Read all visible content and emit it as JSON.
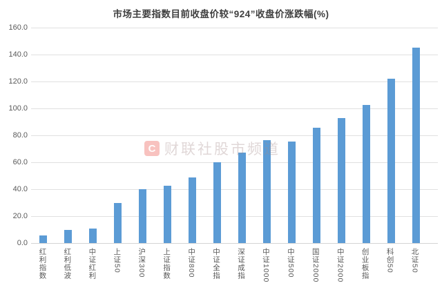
{
  "page": {
    "background": "#ffffff"
  },
  "watermark": {
    "logo_letter": "C",
    "text": "财联社股市频道",
    "logo_color": "#e8463c"
  },
  "chart_data": {
    "type": "bar",
    "title": "市场主要指数目前收盘价较“924”收盘价涨跌幅(%)",
    "categories": [
      "红利指数",
      "红利低波",
      "中证红利",
      "上证50",
      "沪深300",
      "上证指数",
      "中证800",
      "中证全指",
      "深证成指",
      "中证1000",
      "中证500",
      "国证2000",
      "中证2000",
      "创业板指",
      "科创50",
      "北证50"
    ],
    "values": [
      5.5,
      10.0,
      11.0,
      30.0,
      40.0,
      42.5,
      48.5,
      60.0,
      67.0,
      76.5,
      75.5,
      85.5,
      93.0,
      102.5,
      122.0,
      145.0
    ],
    "xlabel": "",
    "ylabel": "",
    "ylim": [
      0,
      160
    ],
    "ytick_step": 20,
    "ytick_labels": [
      "0.0",
      "20.0",
      "40.0",
      "60.0",
      "80.0",
      "100.0",
      "120.0",
      "140.0",
      "160.0"
    ],
    "grid": true,
    "legend_position": "none",
    "bar_color": "#5B9BD5",
    "gridline_color": "#e0e0e0",
    "axis_text_color": "#595959",
    "title_color": "#3f3f3f"
  }
}
